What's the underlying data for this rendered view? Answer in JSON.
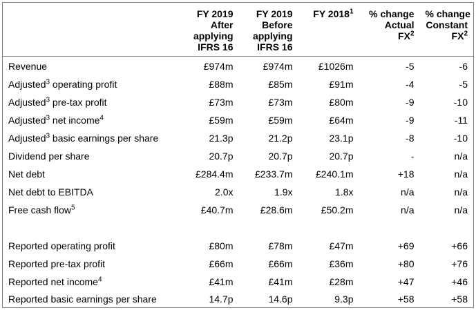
{
  "headers": {
    "col1": [
      "FY 2019",
      "After",
      "applying",
      "IFRS 16"
    ],
    "col2": [
      "FY 2019",
      "Before",
      "applying",
      "IFRS 16"
    ],
    "col3": {
      "text": "FY 2018",
      "sup": "1"
    },
    "col4": [
      "% change",
      "Actual",
      "FX"
    ],
    "col4_sup": "2",
    "col5": [
      "% change",
      "Constant",
      "FX"
    ],
    "col5_sup": "2"
  },
  "rows_adjusted": [
    {
      "label": "Revenue",
      "sup1": "",
      "tail": "",
      "sup2": "",
      "values": [
        "£974m",
        "£974m",
        "£1026m",
        "-5",
        "-6"
      ]
    },
    {
      "label": "Adjusted",
      "sup1": "3",
      "tail": " operating profit",
      "sup2": "",
      "values": [
        "£88m",
        "£85m",
        "£91m",
        "-4",
        "-5"
      ]
    },
    {
      "label": "Adjusted",
      "sup1": "3",
      "tail": " pre-tax profit",
      "sup2": "",
      "values": [
        "£73m",
        "£73m",
        "£80m",
        "-9",
        "-10"
      ]
    },
    {
      "label": "Adjusted",
      "sup1": "3",
      "tail": " net income",
      "sup2": "4",
      "values": [
        "£59m",
        "£59m",
        "£64m",
        "-9",
        "-11"
      ]
    },
    {
      "label": "Adjusted",
      "sup1": "3",
      "tail": " basic earnings per share",
      "sup2": "",
      "values": [
        "21.3p",
        "21.2p",
        "23.1p",
        "-8",
        "-10"
      ]
    },
    {
      "label": "Dividend per share",
      "sup1": "",
      "tail": "",
      "sup2": "",
      "values": [
        "20.7p",
        "20.7p",
        "20.7p",
        "-",
        "n/a"
      ]
    },
    {
      "label": "Net debt",
      "sup1": "",
      "tail": "",
      "sup2": "",
      "values": [
        "£284.4m",
        "£233.7m",
        "£240.1m",
        "+18",
        "n/a"
      ]
    },
    {
      "label": "Net debt to EBITDA",
      "sup1": "",
      "tail": "",
      "sup2": "",
      "values": [
        "2.0x",
        "1.9x",
        "1.8x",
        "n/a",
        "n/a"
      ]
    },
    {
      "label": "Free cash flow",
      "sup1": "5",
      "tail": "",
      "sup2": "",
      "values": [
        "£40.7m",
        "£28.6m",
        "£50.2m",
        "n/a",
        "n/a"
      ]
    }
  ],
  "rows_reported": [
    {
      "label": "Reported operating profit",
      "sup1": "",
      "tail": "",
      "sup2": "",
      "values": [
        "£80m",
        "£78m",
        "£47m",
        "+69",
        "+66"
      ]
    },
    {
      "label": "Reported pre-tax profit",
      "sup1": "",
      "tail": "",
      "sup2": "",
      "values": [
        "£66m",
        "£66m",
        "£36m",
        "+80",
        "+76"
      ]
    },
    {
      "label": "Reported net income",
      "sup1": "4",
      "tail": "",
      "sup2": "",
      "values": [
        "£41m",
        "£41m",
        "£28m",
        "+47",
        "+46"
      ]
    },
    {
      "label": "Reported basic earnings per share",
      "sup1": "",
      "tail": "",
      "sup2": "",
      "values": [
        "14.7p",
        "14.6p",
        "9.3p",
        "+58",
        "+58"
      ]
    }
  ]
}
